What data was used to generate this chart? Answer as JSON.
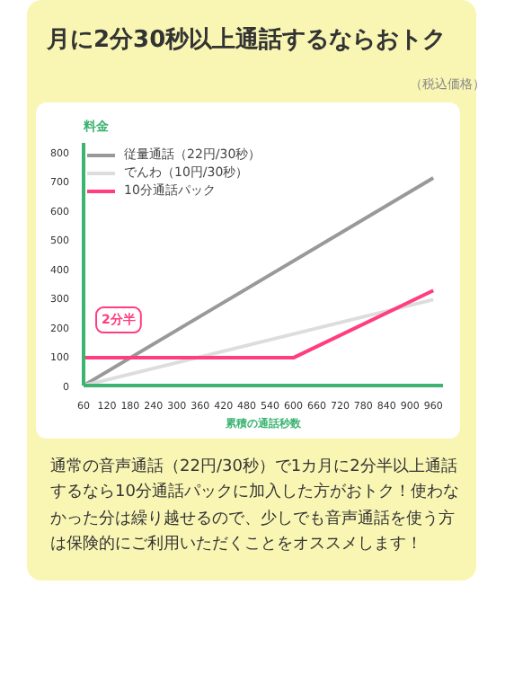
{
  "chart_data": {
    "type": "line",
    "title": "月に2分30秒以上通話するならおトク",
    "subtitle": "（税込価格）",
    "ylabel": "料金",
    "xlabel": "累積の通話秒数",
    "x": [
      60,
      960
    ],
    "series": [
      {
        "name": "従量通話（22円/30秒）",
        "color": "#999999",
        "values": [
          0,
          710
        ]
      },
      {
        "name": "でんわ（10円/30秒）",
        "color": "#dddddd",
        "values": [
          0,
          294
        ]
      },
      {
        "name": "10分通話パック",
        "color": "#ff3d7f",
        "x": [
          60,
          600,
          960
        ],
        "values": [
          95,
          95,
          325
        ]
      }
    ],
    "xlim": [
      60,
      985
    ],
    "xticks": [
      60,
      120,
      180,
      240,
      300,
      360,
      420,
      480,
      540,
      600,
      660,
      720,
      780,
      840,
      900,
      960
    ],
    "ylim": [
      0,
      830
    ],
    "yticks": [
      0,
      100,
      200,
      300,
      400,
      500,
      600,
      700,
      800
    ],
    "grid": false,
    "legend": "top left",
    "marker": "none",
    "line_style": "solid",
    "annotations": [
      {
        "text": "2分半",
        "x": 150,
        "y": 95
      },
      "通常の音声通話（22円/30秒）で1カ月に2分半以上通話するなら10分通話パックに加入した方がおトク！使わなかった分は繰り越せるので、少しでも音声通話を使う方は保険的にご利用いただくことをオススメします！"
    ]
  }
}
